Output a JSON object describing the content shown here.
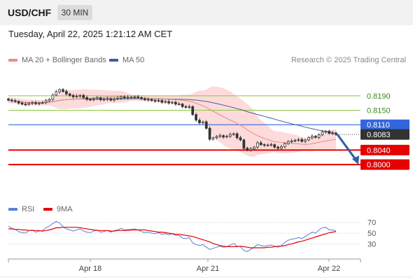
{
  "header": {
    "symbol": "USD/CHF",
    "interval": "30 MIN"
  },
  "timestamp": "Tuesday, April 22, 2025 1:21:12 AM CET",
  "legend": {
    "ma20_bb": "MA 20 + Bollinger Bands",
    "ma50": "MA 50",
    "credit": "Research © 2025 Trading Central",
    "rsi": "RSI",
    "rsi_ma": "9MA"
  },
  "colors": {
    "candle": "#333333",
    "bollinger_fill": "#fbd5d3",
    "ma20": "#e88a86",
    "ma50": "#4a5f9e",
    "resistance": "#8cc63f",
    "pivot": "#3366dd",
    "support": "#e60000",
    "last_price_tag": "#333333",
    "arrow": "#2e5fa3",
    "rsi": "#5b7fd9",
    "rsi_ma": "#e60000"
  },
  "chart_data": {
    "type": "candlestick",
    "x_tick_labels": [
      "Apr 18",
      "Apr 21",
      "Apr 22"
    ],
    "y_range": [
      0.7975,
      0.8238
    ],
    "levels": [
      {
        "label": "0.8190",
        "value": 0.819,
        "kind": "resistance"
      },
      {
        "label": "0.8150",
        "value": 0.815,
        "kind": "resistance"
      },
      {
        "label": "0.8110",
        "value": 0.811,
        "kind": "pivot"
      },
      {
        "label": "0.8040",
        "value": 0.804,
        "kind": "support"
      },
      {
        "label": "0.8000",
        "value": 0.8,
        "kind": "support"
      }
    ],
    "last_price": {
      "label": "0.8083",
      "value": 0.8083
    },
    "forecast_arrow": {
      "from": 0.8083,
      "to": 0.8
    },
    "close_series": [
      0.8178,
      0.8176,
      0.8174,
      0.817,
      0.8167,
      0.8166,
      0.8169,
      0.8171,
      0.8168,
      0.817,
      0.8171,
      0.8176,
      0.818,
      0.8192,
      0.8201,
      0.8207,
      0.8202,
      0.8195,
      0.8191,
      0.8187,
      0.8189,
      0.8191,
      0.8185,
      0.818,
      0.8179,
      0.8181,
      0.8184,
      0.8179,
      0.818,
      0.8182,
      0.8178,
      0.8181,
      0.8183,
      0.8187,
      0.8184,
      0.8186,
      0.8186,
      0.8187,
      0.8185,
      0.8182,
      0.8179,
      0.818,
      0.8177,
      0.8175,
      0.8177,
      0.8172,
      0.8174,
      0.817,
      0.8172,
      0.8167,
      0.8167,
      0.816,
      0.8158,
      0.816,
      0.8138,
      0.8123,
      0.8115,
      0.8118,
      0.81,
      0.807,
      0.8074,
      0.8077,
      0.808,
      0.8076,
      0.8078,
      0.8083,
      0.8085,
      0.8074,
      0.8068,
      0.8045,
      0.804,
      0.8043,
      0.8048,
      0.806,
      0.8055,
      0.8053,
      0.8054,
      0.8055,
      0.8048,
      0.8045,
      0.8049,
      0.8058,
      0.8063,
      0.8065,
      0.8067,
      0.8069,
      0.8064,
      0.8068,
      0.8074,
      0.8078,
      0.8075,
      0.8082,
      0.809,
      0.8092,
      0.8086,
      0.8087,
      0.8083
    ],
    "rsi": {
      "levels": [
        70,
        50,
        30
      ],
      "range": [
        10,
        80
      ],
      "values": [
        63,
        59,
        57,
        53,
        51,
        50,
        55,
        56,
        52,
        54,
        55,
        60,
        63,
        68,
        72,
        69,
        62,
        58,
        56,
        54,
        56,
        58,
        54,
        52,
        51,
        54,
        56,
        52,
        53,
        55,
        52,
        55,
        56,
        59,
        56,
        57,
        57,
        58,
        56,
        53,
        51,
        52,
        50,
        49,
        51,
        48,
        49,
        47,
        49,
        46,
        46,
        41,
        40,
        42,
        32,
        29,
        27,
        29,
        24,
        20,
        22,
        24,
        26,
        24,
        25,
        28,
        31,
        26,
        25,
        18,
        16,
        20,
        24,
        29,
        27,
        26,
        27,
        28,
        26,
        24,
        27,
        33,
        37,
        39,
        40,
        42,
        40,
        44,
        48,
        52,
        50,
        56,
        60,
        61,
        56,
        56,
        54
      ],
      "ma9": [
        58,
        58,
        57,
        57,
        56,
        56,
        55,
        55,
        55,
        55,
        54,
        55,
        56,
        58,
        60,
        60,
        61,
        61,
        61,
        61,
        61,
        60,
        59,
        58,
        57,
        56,
        55,
        55,
        55,
        55,
        54,
        54,
        55,
        55,
        55,
        55,
        56,
        56,
        56,
        56,
        56,
        55,
        54,
        53,
        52,
        52,
        51,
        50,
        49,
        48,
        48,
        47,
        46,
        45,
        44,
        42,
        40,
        38,
        36,
        34,
        31,
        29,
        27,
        26,
        25,
        25,
        25,
        25,
        26,
        25,
        24,
        23,
        23,
        23,
        23,
        23,
        24,
        24,
        25,
        26,
        26,
        27,
        29,
        30,
        32,
        34,
        35,
        37,
        39,
        41,
        43,
        45,
        47,
        49,
        51,
        52,
        53
      ]
    }
  }
}
